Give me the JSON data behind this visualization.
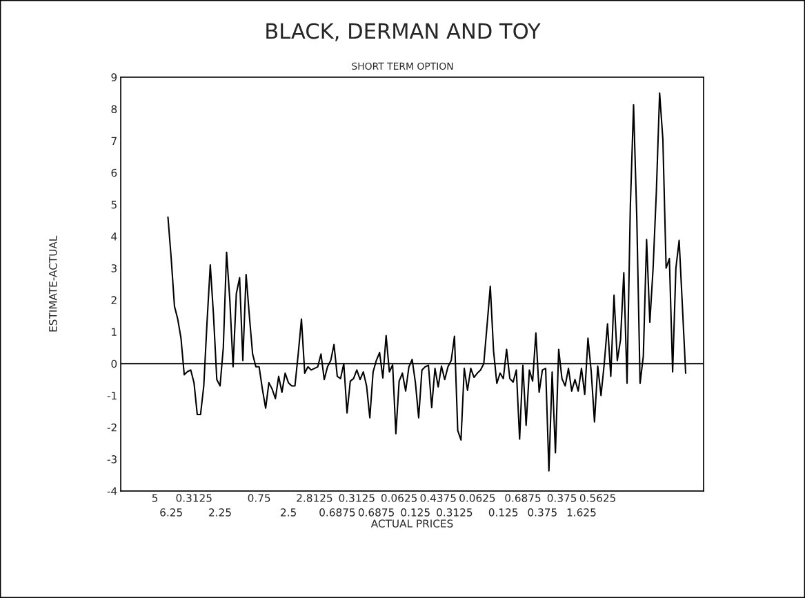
{
  "chart_data": {
    "type": "line",
    "title": "BLACK, DERMAN AND TOY",
    "subtitle": "SHORT TERM OPTION",
    "xlabel": "ACTUAL PRICES",
    "ylabel": "ESTIMATE-ACTUAL",
    "categories": [
      "5",
      null,
      null,
      null,
      null,
      "6.25",
      null,
      null,
      null,
      null,
      null,
      null,
      "0.3125",
      null,
      null,
      null,
      null,
      null,
      null,
      null,
      "2.25",
      null,
      null,
      null,
      null,
      null,
      null,
      null,
      null,
      null,
      null,
      null,
      "0.75",
      null,
      null,
      null,
      null,
      null,
      null,
      null,
      null,
      "2.5",
      null,
      null,
      null,
      null,
      null,
      null,
      null,
      "2.8125",
      null,
      null,
      null,
      null,
      null,
      null,
      "0.6875",
      null,
      null,
      null,
      null,
      null,
      "0.3125",
      null,
      null,
      null,
      null,
      null,
      "0.6875",
      null,
      null,
      null,
      null,
      null,
      null,
      "0.0625",
      null,
      null,
      null,
      null,
      "0.125",
      null,
      null,
      null,
      null,
      null,
      null,
      "0.4375",
      null,
      null,
      null,
      null,
      "0.3125",
      null,
      null,
      null,
      null,
      null,
      null,
      "0.0625",
      null,
      null,
      null,
      null,
      null,
      null,
      null,
      "0.125",
      null,
      null,
      null,
      null,
      null,
      "0.6875",
      null,
      null,
      null,
      null,
      null,
      "0.375",
      null,
      null,
      null,
      null,
      null,
      "0.375",
      null,
      null,
      null,
      null,
      null,
      "1.625",
      null,
      null,
      null,
      null,
      "0.5625",
      null,
      null,
      null,
      null,
      null,
      null,
      null,
      null,
      null,
      null,
      null,
      null,
      null,
      null,
      null,
      null,
      null,
      null,
      null,
      null,
      null,
      null,
      null,
      null,
      null,
      null,
      null
    ],
    "series": [
      {
        "color": "#000000",
        "values": [
          null,
          null,
          null,
          null,
          4.6,
          3.3,
          1.8,
          1.4,
          0.8,
          -0.35,
          -0.25,
          -0.2,
          -0.6,
          -1.6,
          -1.6,
          -0.7,
          1.3,
          3.1,
          1.5,
          -0.5,
          -0.7,
          0.5,
          3.5,
          2.0,
          -0.1,
          2.2,
          2.7,
          0.1,
          2.8,
          1.5,
          0.3,
          -0.1,
          -0.1,
          -0.8,
          -1.4,
          -0.6,
          -0.8,
          -1.1,
          -0.4,
          -0.9,
          -0.3,
          -0.6,
          -0.7,
          -0.7,
          0.3,
          1.4,
          -0.3,
          -0.1,
          -0.2,
          -0.15,
          -0.1,
          0.3,
          -0.5,
          -0.1,
          0.1,
          0.6,
          -0.4,
          -0.47,
          0,
          -1.55,
          -0.55,
          -0.47,
          -0.2,
          -0.5,
          -0.26,
          -0.7,
          -1.7,
          -0.26,
          0.1,
          0.35,
          -0.45,
          0.88,
          -0.26,
          -0.04,
          -2.2,
          -0.55,
          -0.3,
          -0.86,
          -0.1,
          0.13,
          -0.6,
          -1.7,
          -0.2,
          -0.1,
          -0.05,
          -1.38,
          -0.15,
          -0.73,
          -0.08,
          -0.5,
          -0.1,
          0.1,
          0.86,
          -2.1,
          -2.4,
          -0.15,
          -0.84,
          -0.15,
          -0.43,
          -0.3,
          -0.2,
          0,
          1.2,
          2.43,
          0.4,
          -0.62,
          -0.3,
          -0.47,
          0.45,
          -0.47,
          -0.58,
          -0.2,
          -2.37,
          -0.05,
          -1.94,
          -0.2,
          -0.55,
          0.96,
          -0.9,
          -0.2,
          -0.15,
          -3.37,
          -0.26,
          -2.8,
          0.45,
          -0.47,
          -0.7,
          -0.15,
          -0.86,
          -0.5,
          -0.86,
          -0.15,
          -0.97,
          0.8,
          -0.26,
          -1.83,
          -0.08,
          -1.0,
          0,
          1.25,
          -0.4,
          2.15,
          0.1,
          0.75,
          2.86,
          -0.62,
          4.9,
          8.13,
          4.54,
          -0.62,
          0.24,
          3.9,
          1.3,
          3.0,
          5.4,
          8.5,
          7.05,
          3.0,
          3.3,
          -0.26,
          3.0,
          3.87,
          1.8,
          -0.3
        ]
      }
    ],
    "ylim": [
      -4,
      9
    ],
    "yticks": [
      -4,
      -3,
      -2,
      -1,
      0,
      1,
      2,
      3,
      4,
      5,
      6,
      7,
      8,
      9
    ],
    "ref_lines": [
      {
        "axis": "y",
        "value": 0,
        "color": "#000000"
      }
    ],
    "grid": false,
    "legend": false
  }
}
